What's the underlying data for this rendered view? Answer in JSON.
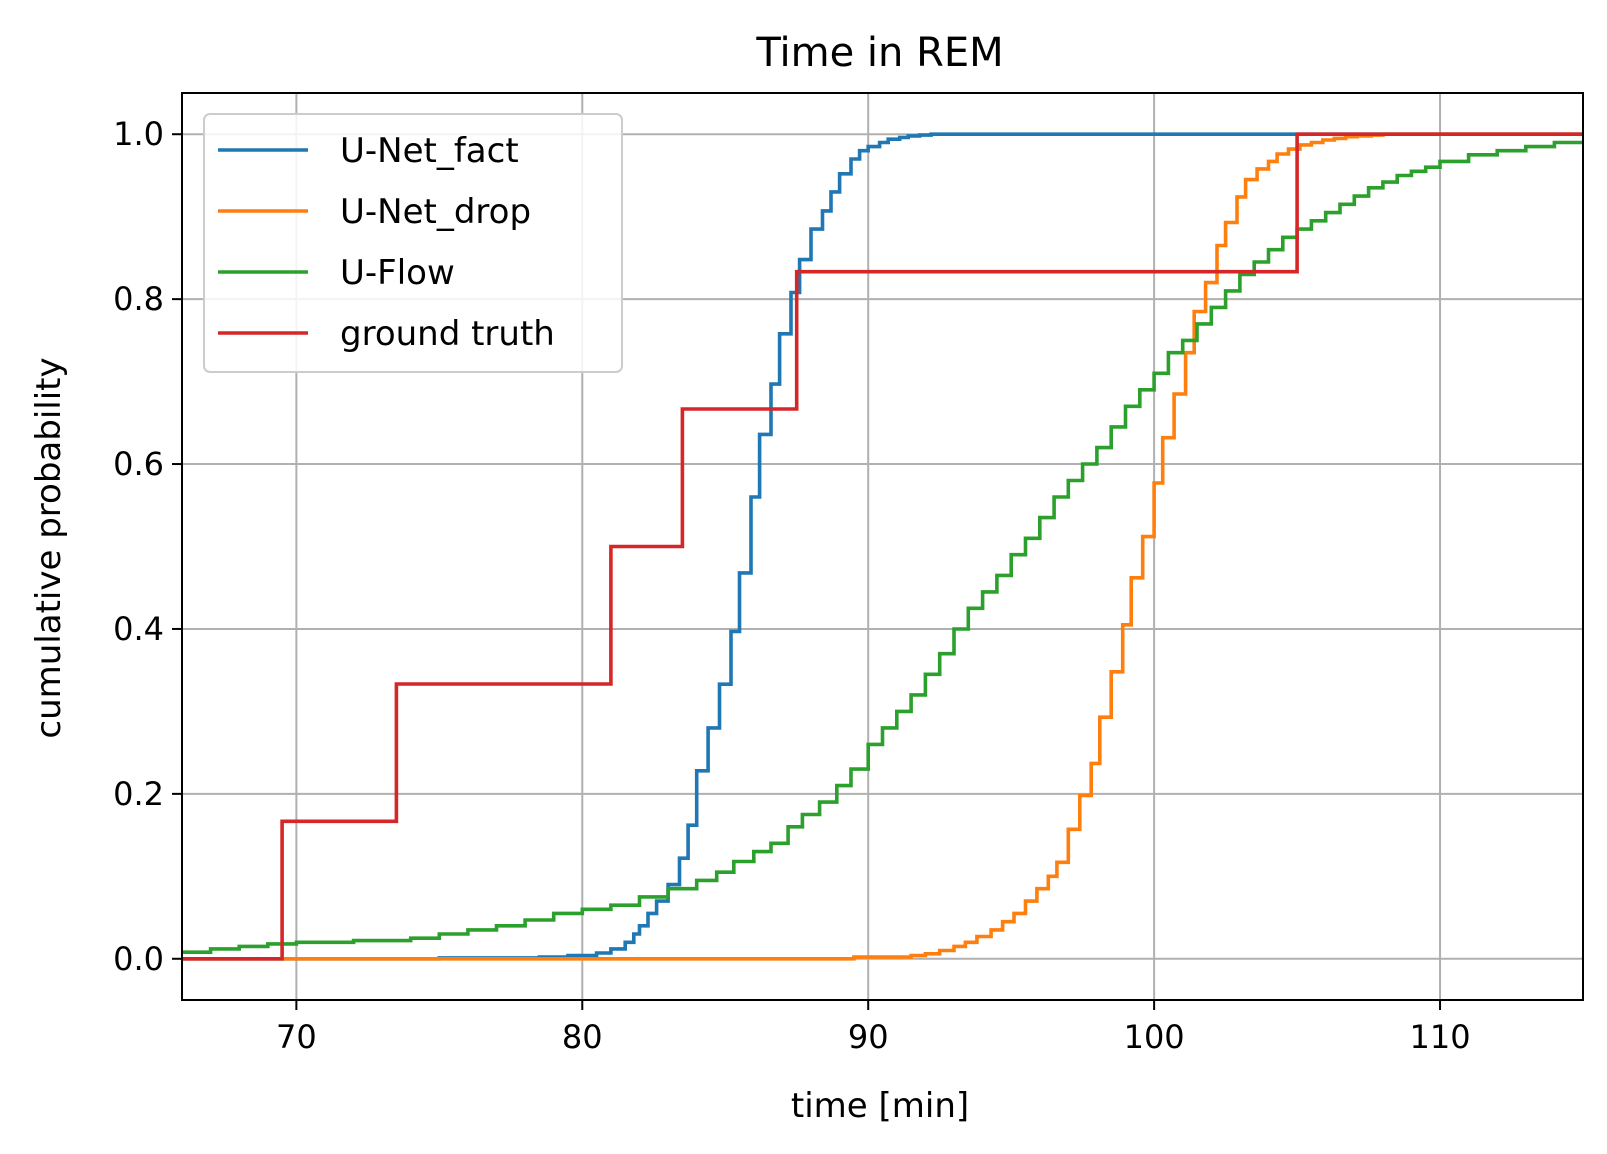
{
  "chart_data": {
    "type": "line",
    "title": "Time in REM",
    "xlabel": "time [min]",
    "ylabel": "cumulative probability",
    "xlim": [
      66,
      115
    ],
    "ylim": [
      -0.05,
      1.05
    ],
    "xticks": [
      70,
      80,
      90,
      100,
      110
    ],
    "xtick_labels": [
      "70",
      "80",
      "90",
      "100",
      "110"
    ],
    "yticks": [
      0.0,
      0.2,
      0.4,
      0.6,
      0.8,
      1.0
    ],
    "ytick_labels": [
      "0.0",
      "0.2",
      "0.4",
      "0.6",
      "0.8",
      "1.0"
    ],
    "grid": true,
    "legend_position": "upper-left",
    "step_style": "post",
    "series": [
      {
        "name": "U-Net_fact",
        "color": "#1f77b4",
        "x": [
          66,
          75.0,
          78.5,
          79.5,
          80.5,
          81.0,
          81.5,
          81.8,
          82.0,
          82.3,
          82.6,
          83.0,
          83.4,
          83.7,
          84.0,
          84.4,
          84.8,
          85.2,
          85.5,
          85.9,
          86.2,
          86.6,
          86.9,
          87.3,
          87.6,
          88.0,
          88.4,
          88.7,
          89.0,
          89.4,
          89.7,
          90.0,
          90.4,
          90.7,
          91.1,
          91.4,
          91.8,
          92.2,
          92.5,
          92.9,
          93.3,
          93.7,
          94.1,
          94.5,
          95.0,
          105.0,
          115
        ],
        "y": [
          0.0,
          0.001,
          0.002,
          0.004,
          0.007,
          0.012,
          0.02,
          0.03,
          0.04,
          0.055,
          0.07,
          0.09,
          0.122,
          0.162,
          0.228,
          0.28,
          0.333,
          0.397,
          0.468,
          0.56,
          0.636,
          0.697,
          0.758,
          0.808,
          0.848,
          0.885,
          0.907,
          0.93,
          0.952,
          0.97,
          0.98,
          0.985,
          0.99,
          0.994,
          0.996,
          0.998,
          0.999,
          1.0,
          1.0,
          1.0,
          1.0,
          1.0,
          1.0,
          1.0,
          1.0,
          1.0,
          1.0
        ]
      },
      {
        "name": "U-Net_drop",
        "color": "#ff7f0e",
        "x": [
          66,
          89.5,
          91.5,
          92.0,
          92.5,
          93.0,
          93.4,
          93.8,
          94.3,
          94.7,
          95.1,
          95.5,
          95.9,
          96.3,
          96.6,
          97.0,
          97.4,
          97.8,
          98.1,
          98.5,
          98.9,
          99.2,
          99.6,
          100.0,
          100.3,
          100.7,
          101.1,
          101.4,
          101.8,
          102.2,
          102.5,
          102.9,
          103.2,
          103.6,
          104.0,
          104.3,
          104.7,
          105.1,
          105.5,
          105.9,
          106.3,
          106.7,
          107.1,
          107.6,
          108.0,
          108.5,
          109.0,
          109.6,
          110.3,
          111.0,
          112.0,
          115
        ],
        "y": [
          0.0,
          0.002,
          0.004,
          0.006,
          0.01,
          0.015,
          0.02,
          0.027,
          0.035,
          0.045,
          0.055,
          0.07,
          0.085,
          0.1,
          0.117,
          0.157,
          0.198,
          0.237,
          0.293,
          0.348,
          0.405,
          0.462,
          0.512,
          0.577,
          0.632,
          0.685,
          0.735,
          0.785,
          0.82,
          0.865,
          0.893,
          0.924,
          0.945,
          0.958,
          0.967,
          0.976,
          0.982,
          0.987,
          0.99,
          0.993,
          0.995,
          0.997,
          0.998,
          0.999,
          1.0,
          1.0,
          1.0,
          1.0,
          1.0,
          1.0,
          1.0,
          1.0
        ]
      },
      {
        "name": "U-Flow",
        "color": "#2ca02c",
        "x": [
          66,
          67.0,
          68.0,
          69.0,
          70.0,
          72.0,
          74.0,
          75.0,
          76.0,
          77.0,
          78.0,
          79.0,
          80.0,
          81.0,
          82.0,
          83.0,
          84.0,
          84.7,
          85.3,
          86.0,
          86.6,
          87.2,
          87.7,
          88.3,
          88.9,
          89.4,
          90.0,
          90.5,
          91.0,
          91.5,
          92.0,
          92.5,
          93.0,
          93.5,
          94.0,
          94.5,
          95.0,
          95.5,
          96.0,
          96.5,
          97.0,
          97.5,
          98.0,
          98.5,
          99.0,
          99.5,
          100.0,
          100.5,
          101.0,
          101.5,
          102.0,
          102.5,
          103.0,
          103.5,
          104.0,
          104.5,
          105.0,
          105.5,
          106.0,
          106.5,
          107.0,
          107.5,
          108.0,
          108.5,
          109.0,
          109.5,
          110.0,
          111.0,
          112.0,
          113.0,
          114.0,
          115
        ],
        "y": [
          0.008,
          0.012,
          0.015,
          0.018,
          0.02,
          0.022,
          0.025,
          0.03,
          0.035,
          0.04,
          0.047,
          0.055,
          0.06,
          0.065,
          0.075,
          0.085,
          0.095,
          0.105,
          0.118,
          0.13,
          0.14,
          0.16,
          0.175,
          0.19,
          0.21,
          0.23,
          0.26,
          0.28,
          0.3,
          0.32,
          0.345,
          0.37,
          0.4,
          0.425,
          0.445,
          0.465,
          0.49,
          0.51,
          0.535,
          0.56,
          0.58,
          0.6,
          0.62,
          0.645,
          0.67,
          0.69,
          0.71,
          0.735,
          0.75,
          0.77,
          0.79,
          0.81,
          0.83,
          0.845,
          0.86,
          0.875,
          0.885,
          0.895,
          0.905,
          0.915,
          0.925,
          0.935,
          0.942,
          0.95,
          0.955,
          0.96,
          0.967,
          0.975,
          0.98,
          0.985,
          0.99,
          0.99
        ]
      },
      {
        "name": "ground truth",
        "color": "#d62728",
        "x": [
          66,
          69.5,
          73.5,
          81.0,
          83.5,
          87.5,
          105.0,
          115
        ],
        "y": [
          0.0,
          0.1667,
          0.3333,
          0.5,
          0.6667,
          0.8333,
          1.0,
          1.0
        ]
      }
    ]
  }
}
